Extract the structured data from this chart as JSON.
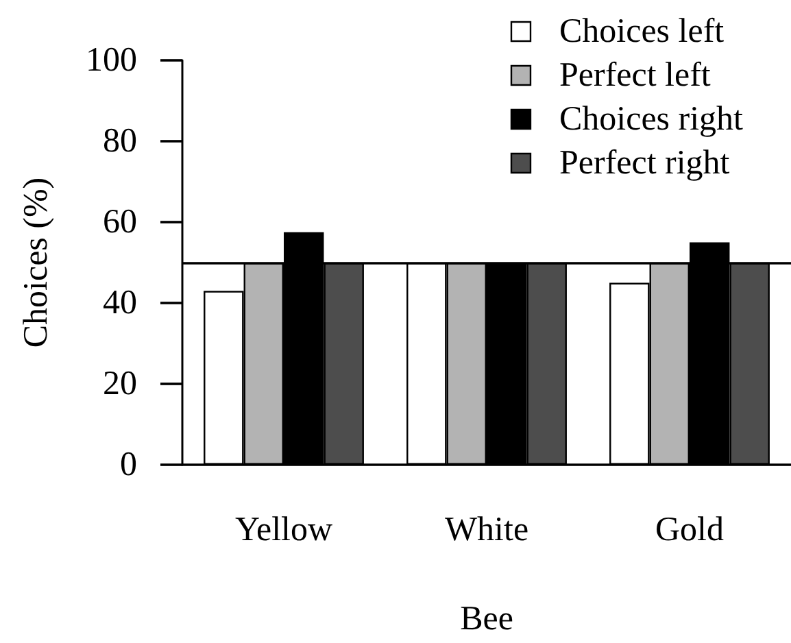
{
  "chart_data": {
    "type": "bar",
    "xlabel": "Bee",
    "ylabel": "Choices (%)",
    "categories": [
      "Yellow",
      "White",
      "Gold"
    ],
    "series": [
      {
        "name": "Choices left",
        "color": "#ffffff",
        "values": [
          43,
          50,
          45
        ]
      },
      {
        "name": "Perfect left",
        "color": "#b3b3b3",
        "values": [
          50,
          50,
          50
        ]
      },
      {
        "name": "Choices right",
        "color": "#000000",
        "values": [
          57.5,
          50,
          55
        ]
      },
      {
        "name": "Perfect right",
        "color": "#4d4d4d",
        "values": [
          50,
          50,
          50
        ]
      }
    ],
    "ylim": [
      0,
      100
    ],
    "yticks": [
      0,
      20,
      40,
      60,
      80,
      100
    ],
    "ref_lines": [
      {
        "axis": "y",
        "value": 50,
        "color": "#000000"
      }
    ],
    "legend": "top right"
  }
}
